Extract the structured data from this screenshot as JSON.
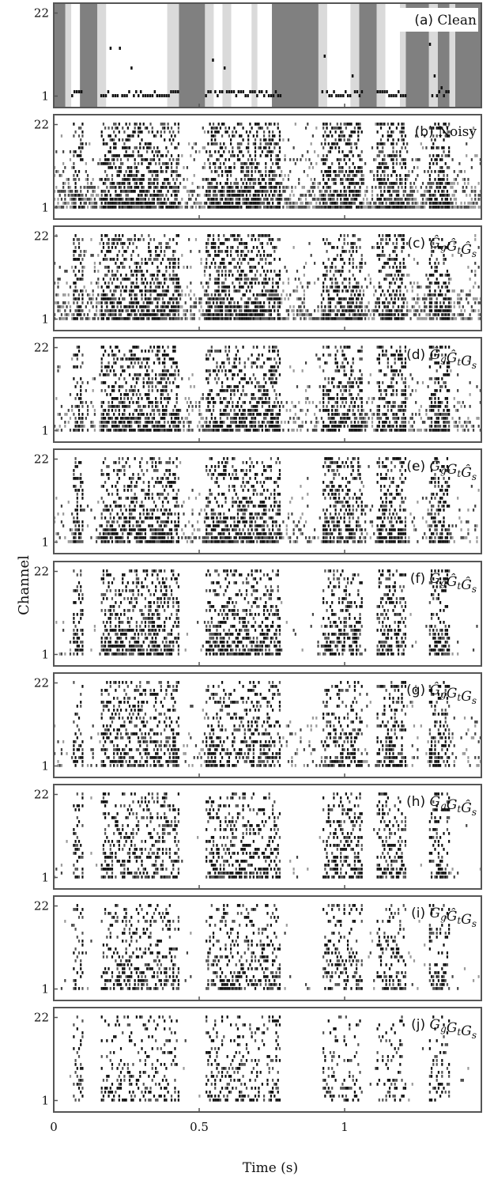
{
  "chart_data": {
    "type": "heatmap",
    "xlabel": "Time (s)",
    "ylabel": "Channel",
    "xlim": [
      0,
      1.47
    ],
    "ylim": [
      1,
      22
    ],
    "x_ticks": [
      0,
      0.5,
      1
    ],
    "x_tick_labels": [
      "0",
      "0.5",
      "1"
    ],
    "y_ticks": [
      1,
      22
    ],
    "y_tick_labels": [
      "1",
      "22"
    ],
    "panels": [
      {
        "letter": "(a)",
        "mask": "Clean",
        "math": false
      },
      {
        "letter": "(b)",
        "mask": "Noisy",
        "math": false
      },
      {
        "letter": "(c)",
        "mask": "Ĝ_gĜ_tĜ_s",
        "math": true,
        "terms": [
          [
            "G",
            "g",
            true
          ],
          [
            "G",
            "t",
            true
          ],
          [
            "G",
            "s",
            true
          ]
        ]
      },
      {
        "letter": "(d)",
        "mask": "Ĝ_gĜ_tG_s",
        "math": true,
        "terms": [
          [
            "G",
            "g",
            true
          ],
          [
            "G",
            "t",
            true
          ],
          [
            "G",
            "s",
            false
          ]
        ]
      },
      {
        "letter": "(e)",
        "mask": "Ĝ_gG_tĜ_s",
        "math": true,
        "terms": [
          [
            "G",
            "g",
            true
          ],
          [
            "G",
            "t",
            false
          ],
          [
            "G",
            "s",
            true
          ]
        ]
      },
      {
        "letter": "(f)",
        "mask": "G_gĜ_tĜ_s",
        "math": true,
        "terms": [
          [
            "G",
            "g",
            false
          ],
          [
            "G",
            "t",
            true
          ],
          [
            "G",
            "s",
            true
          ]
        ]
      },
      {
        "letter": "(g)",
        "mask": "Ĝ_gG_tG_s",
        "math": true,
        "terms": [
          [
            "G",
            "g",
            true
          ],
          [
            "G",
            "t",
            false
          ],
          [
            "G",
            "s",
            false
          ]
        ]
      },
      {
        "letter": "(h)",
        "mask": "G_gG_tĜ_s",
        "math": true,
        "terms": [
          [
            "G",
            "g",
            false
          ],
          [
            "G",
            "t",
            false
          ],
          [
            "G",
            "s",
            true
          ]
        ]
      },
      {
        "letter": "(i)",
        "mask": "G_gĜ_tG_s",
        "math": true,
        "terms": [
          [
            "G",
            "g",
            false
          ],
          [
            "G",
            "t",
            true
          ],
          [
            "G",
            "s",
            false
          ]
        ]
      },
      {
        "letter": "(j)",
        "mask": "G_gG_tG_s",
        "math": true,
        "terms": [
          [
            "G",
            "g",
            false
          ],
          [
            "G",
            "t",
            false
          ],
          [
            "G",
            "s",
            false
          ]
        ]
      }
    ],
    "clean_gray_intervals_s": [
      [
        0.0,
        0.04
      ],
      [
        0.09,
        0.15
      ],
      [
        0.43,
        0.52
      ],
      [
        0.75,
        0.91
      ],
      [
        1.05,
        1.11
      ],
      [
        1.21,
        1.29
      ],
      [
        1.32,
        1.36
      ],
      [
        1.38,
        1.47
      ]
    ],
    "clean_lightgray_intervals_s": [
      [
        0.04,
        0.06
      ],
      [
        0.15,
        0.18
      ],
      [
        0.39,
        0.43
      ],
      [
        0.52,
        0.55
      ],
      [
        0.58,
        0.61
      ],
      [
        0.68,
        0.7
      ],
      [
        0.91,
        0.94
      ],
      [
        1.02,
        1.05
      ],
      [
        1.11,
        1.14
      ],
      [
        1.19,
        1.21
      ],
      [
        1.29,
        1.32
      ],
      [
        1.36,
        1.38
      ]
    ],
    "speech_segments_s": [
      [
        0.06,
        0.1
      ],
      [
        0.16,
        0.43
      ],
      [
        0.52,
        0.78
      ],
      [
        0.92,
        1.06
      ],
      [
        1.11,
        1.21
      ],
      [
        1.29,
        1.36
      ]
    ],
    "colors": {
      "speech": "#111111",
      "gray": "#808080",
      "lightgray": "#dadada",
      "background": "#ffffff",
      "frame": "#555555"
    }
  }
}
